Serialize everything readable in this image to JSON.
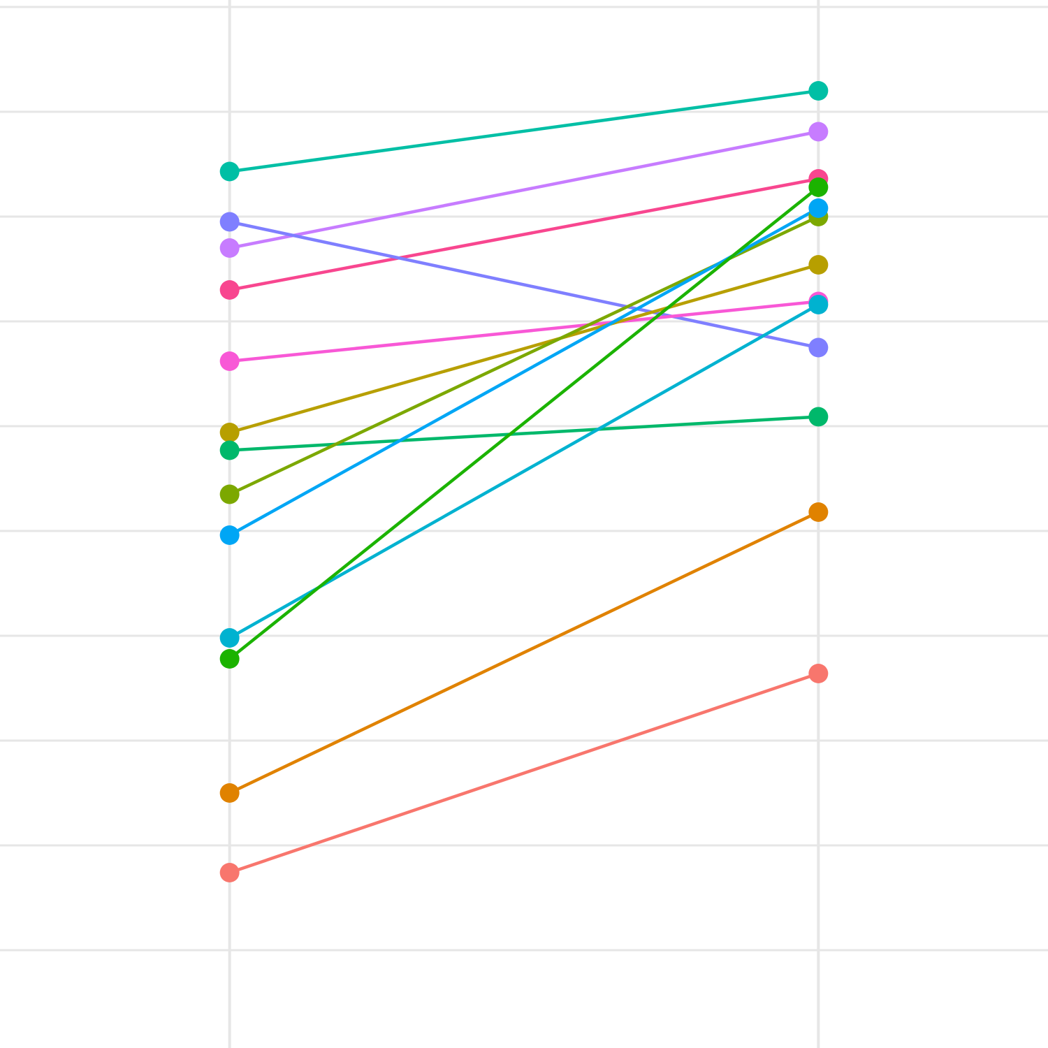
{
  "chart_data": {
    "type": "line",
    "title": "",
    "xlabel": "",
    "ylabel": "",
    "x": [
      1,
      2
    ],
    "xlim": [
      0.61,
      2.39
    ],
    "ylim": [
      0,
      10
    ],
    "grid": true,
    "legend": "none",
    "series": [
      {
        "color": "#00BFA5",
        "values": [
          8.43,
          9.2
        ]
      },
      {
        "color": "#C77CFF",
        "values": [
          7.7,
          8.81
        ]
      },
      {
        "color": "#F8468F",
        "values": [
          7.3,
          8.36
        ]
      },
      {
        "color": "#7F7FFF",
        "values": [
          7.95,
          6.75
        ]
      },
      {
        "color": "#F858D6",
        "values": [
          6.62,
          7.19
        ]
      },
      {
        "color": "#B79F00",
        "values": [
          5.94,
          7.54
        ]
      },
      {
        "color": "#00B86B",
        "values": [
          5.77,
          6.09
        ]
      },
      {
        "color": "#7CA800",
        "values": [
          5.35,
          8.0
        ]
      },
      {
        "color": "#00A6F5",
        "values": [
          4.96,
          8.08
        ]
      },
      {
        "color": "#00B2D0",
        "values": [
          3.98,
          7.16
        ]
      },
      {
        "color": "#1BB300",
        "values": [
          3.78,
          8.28
        ]
      },
      {
        "color": "#E08200",
        "values": [
          2.5,
          5.18
        ]
      },
      {
        "color": "#F8766D",
        "values": [
          1.74,
          3.64
        ]
      }
    ]
  }
}
